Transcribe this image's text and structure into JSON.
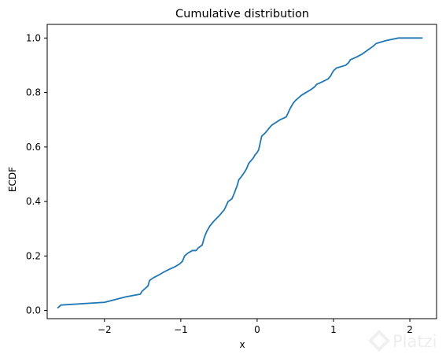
{
  "chart_data": {
    "type": "line",
    "title": "Cumulative distribution",
    "xlabel": "x",
    "ylabel": "ECDF",
    "xlim": [
      -2.75,
      2.35
    ],
    "ylim": [
      -0.03,
      1.05
    ],
    "xticks": [
      -2,
      -1,
      0,
      1,
      2
    ],
    "xtick_labels": [
      "−2",
      "−1",
      "0",
      "1",
      "2"
    ],
    "yticks": [
      0.0,
      0.2,
      0.4,
      0.6,
      0.8,
      1.0
    ],
    "ytick_labels": [
      "0.0",
      "0.2",
      "0.4",
      "0.6",
      "0.8",
      "1.0"
    ],
    "grid": false,
    "series": [
      {
        "color": "#1f77b4",
        "x": [
          -2.61,
          -2.57,
          -2.0,
          -1.72,
          -1.53,
          -1.51,
          -1.43,
          -1.41,
          -1.36,
          -1.29,
          -1.23,
          -1.16,
          -1.08,
          -1.02,
          -0.98,
          -0.95,
          -0.91,
          -0.85,
          -0.8,
          -0.77,
          -0.72,
          -0.69,
          -0.66,
          -0.62,
          -0.56,
          -0.49,
          -0.43,
          -0.38,
          -0.33,
          -0.3,
          -0.26,
          -0.24,
          -0.21,
          -0.16,
          -0.14,
          -0.11,
          -0.08,
          -0.05,
          -0.03,
          0.0,
          0.02,
          0.06,
          0.1,
          0.13,
          0.16,
          0.19,
          0.3,
          0.38,
          0.43,
          0.47,
          0.5,
          0.54,
          0.58,
          0.64,
          0.7,
          0.75,
          0.78,
          0.86,
          0.93,
          0.96,
          1.0,
          1.04,
          1.16,
          1.2,
          1.22,
          1.3,
          1.37,
          1.47,
          1.52,
          1.56,
          1.68,
          1.85,
          2.0,
          2.16
        ],
        "y": [
          0.01,
          0.02,
          0.03,
          0.05,
          0.06,
          0.07,
          0.09,
          0.11,
          0.12,
          0.13,
          0.14,
          0.15,
          0.16,
          0.17,
          0.18,
          0.2,
          0.21,
          0.22,
          0.22,
          0.23,
          0.24,
          0.27,
          0.29,
          0.31,
          0.33,
          0.35,
          0.37,
          0.4,
          0.41,
          0.43,
          0.46,
          0.48,
          0.49,
          0.51,
          0.52,
          0.54,
          0.55,
          0.56,
          0.57,
          0.58,
          0.59,
          0.64,
          0.65,
          0.66,
          0.67,
          0.68,
          0.7,
          0.71,
          0.74,
          0.76,
          0.77,
          0.78,
          0.79,
          0.8,
          0.81,
          0.82,
          0.83,
          0.84,
          0.85,
          0.86,
          0.88,
          0.89,
          0.9,
          0.91,
          0.92,
          0.93,
          0.94,
          0.96,
          0.97,
          0.98,
          0.99,
          1.0,
          1.0,
          1.0
        ]
      }
    ]
  },
  "watermark": {
    "text": "Platzi"
  }
}
